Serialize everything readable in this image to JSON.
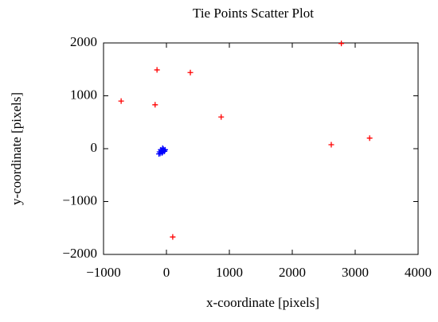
{
  "chart_data": {
    "type": "scatter",
    "title": "Tie Points Scatter Plot",
    "x_label": "x-coordinate [pixels]",
    "y_label": "y-coordinate [pixels]",
    "xlim": [
      -1000,
      4000
    ],
    "ylim": [
      -2000,
      2000
    ],
    "xticks": [
      {
        "value": -1000,
        "label": "−1000"
      },
      0,
      1000,
      2000,
      3000,
      4000
    ],
    "yticks": [
      {
        "value": -2000,
        "label": "−2000"
      },
      {
        "value": -1000,
        "label": "−1000"
      },
      0,
      1000,
      2000
    ],
    "marker": "+",
    "series": [
      {
        "color": "#ff0000",
        "x": [
          2780,
          -150,
          380,
          -720,
          -180,
          870,
          2620,
          3230,
          100
        ],
        "y": [
          1990,
          1490,
          1440,
          900,
          830,
          600,
          75,
          200,
          -1670
        ]
      },
      {
        "color": "#0000ff",
        "x": [
          -110,
          -90,
          -70,
          -50,
          -30,
          -100,
          -60,
          -40,
          -80,
          -20,
          -120,
          -55
        ],
        "y": [
          -60,
          -20,
          -80,
          -10,
          -50,
          -90,
          10,
          -30,
          -40,
          -20,
          -100,
          -60
        ]
      }
    ]
  }
}
